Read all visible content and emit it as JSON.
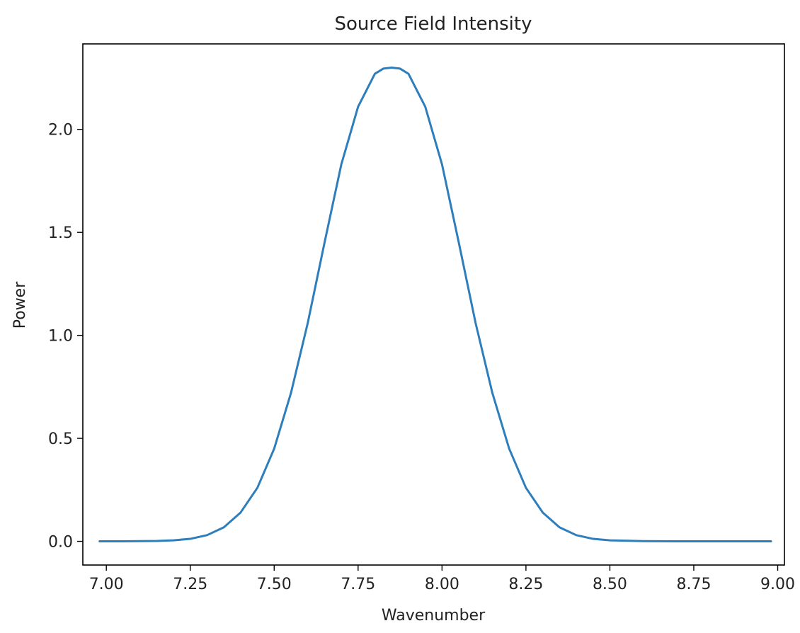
{
  "chart_data": {
    "type": "line",
    "title": "Source Field Intensity",
    "xlabel": "Wavenumber",
    "ylabel": "Power",
    "xlim": [
      6.93,
      9.02
    ],
    "ylim": [
      -0.115,
      2.415
    ],
    "xticks": [
      7.0,
      7.25,
      7.5,
      7.75,
      8.0,
      8.25,
      8.5,
      8.75,
      9.0
    ],
    "xtick_labels": [
      "7.00",
      "7.25",
      "7.50",
      "7.75",
      "8.00",
      "8.25",
      "8.50",
      "8.75",
      "9.00"
    ],
    "yticks": [
      0.0,
      0.5,
      1.0,
      1.5,
      2.0
    ],
    "ytick_labels": [
      "0.0",
      "0.5",
      "1.0",
      "1.5",
      "2.0"
    ],
    "grid": false,
    "series": [
      {
        "color": "#2e7ebc",
        "x": [
          6.98,
          7.05,
          7.1,
          7.15,
          7.2,
          7.25,
          7.3,
          7.35,
          7.4,
          7.45,
          7.5,
          7.55,
          7.6,
          7.65,
          7.7,
          7.75,
          7.8,
          7.825,
          7.85,
          7.875,
          7.9,
          7.95,
          8.0,
          8.05,
          8.1,
          8.15,
          8.2,
          8.25,
          8.3,
          8.35,
          8.4,
          8.45,
          8.5,
          8.6,
          8.7,
          8.8,
          8.98
        ],
        "y": [
          0.0,
          0.0,
          0.001,
          0.002,
          0.005,
          0.012,
          0.03,
          0.068,
          0.14,
          0.26,
          0.45,
          0.72,
          1.06,
          1.45,
          1.83,
          2.11,
          2.27,
          2.295,
          2.3,
          2.295,
          2.27,
          2.11,
          1.83,
          1.45,
          1.06,
          0.72,
          0.45,
          0.26,
          0.14,
          0.068,
          0.03,
          0.012,
          0.005,
          0.001,
          0.0,
          0.0,
          0.0
        ]
      }
    ]
  }
}
